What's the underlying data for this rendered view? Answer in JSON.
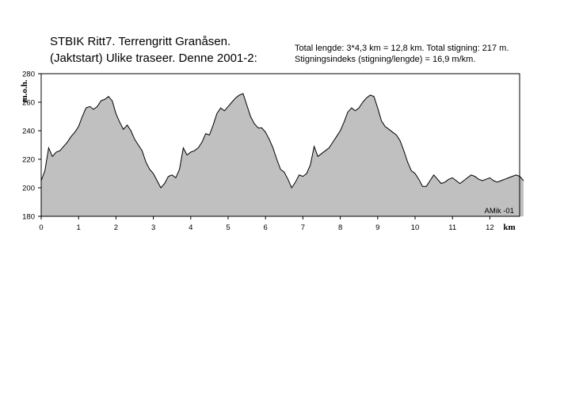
{
  "header": {
    "title_line1": "STBIK Ritt7. Terrengritt Granåsen.",
    "title_line2": "(Jaktstart) Ulike traseer. Denne 2001-2:",
    "info_line1": "Total lengde: 3*4,3 km = 12,8 km. Total stigning:  217 m.",
    "info_line2": "Stigningsindeks (stigning/lengde) = 16,9 m/km."
  },
  "chart_data": {
    "type": "area",
    "title": "STBIK Ritt7. Terrengritt Granåsen. (Jaktstart) Ulike traseer. Denne 2001-2:",
    "xlabel": "km",
    "ylabel": "m.o.h.",
    "xlim": [
      0,
      12.9
    ],
    "ylim": [
      180,
      280
    ],
    "xticks": [
      0,
      1,
      2,
      3,
      4,
      5,
      6,
      7,
      8,
      9,
      10,
      11,
      12
    ],
    "yticks": [
      180,
      200,
      220,
      240,
      260,
      280
    ],
    "annotation": "AMik -01",
    "grid": false,
    "fill_color": "#c0c0c0",
    "line_color": "#000000",
    "x": [
      0,
      0.1,
      0.2,
      0.3,
      0.4,
      0.5,
      0.6,
      0.7,
      0.8,
      0.9,
      1.0,
      1.1,
      1.2,
      1.3,
      1.4,
      1.5,
      1.6,
      1.7,
      1.8,
      1.9,
      2.0,
      2.1,
      2.2,
      2.3,
      2.4,
      2.5,
      2.6,
      2.7,
      2.8,
      2.9,
      3.0,
      3.1,
      3.2,
      3.3,
      3.4,
      3.5,
      3.6,
      3.7,
      3.8,
      3.9,
      4.0,
      4.1,
      4.2,
      4.3,
      4.4,
      4.5,
      4.6,
      4.7,
      4.8,
      4.9,
      5.0,
      5.1,
      5.2,
      5.3,
      5.4,
      5.5,
      5.6,
      5.7,
      5.8,
      5.9,
      6.0,
      6.1,
      6.2,
      6.3,
      6.4,
      6.5,
      6.6,
      6.7,
      6.8,
      6.9,
      7.0,
      7.1,
      7.2,
      7.3,
      7.4,
      7.5,
      7.6,
      7.7,
      7.8,
      7.9,
      8.0,
      8.1,
      8.2,
      8.3,
      8.4,
      8.5,
      8.6,
      8.7,
      8.8,
      8.9,
      9.0,
      9.1,
      9.2,
      9.3,
      9.4,
      9.5,
      9.6,
      9.7,
      9.8,
      9.9,
      10.0,
      10.1,
      10.2,
      10.3,
      10.4,
      10.5,
      10.6,
      10.7,
      10.8,
      10.9,
      11.0,
      11.1,
      11.2,
      11.3,
      11.4,
      11.5,
      11.6,
      11.7,
      11.8,
      11.9,
      12.0,
      12.1,
      12.2,
      12.3,
      12.4,
      12.5,
      12.6,
      12.7,
      12.8,
      12.9
    ],
    "y": [
      205,
      212,
      228,
      222,
      225,
      226,
      229,
      232,
      236,
      239,
      243,
      250,
      256,
      257,
      255,
      257,
      261,
      262,
      264,
      261,
      252,
      246,
      241,
      244,
      240,
      234,
      230,
      226,
      218,
      213,
      210,
      205,
      200,
      203,
      208,
      209,
      207,
      213,
      228,
      223,
      225,
      226,
      228,
      232,
      238,
      237,
      244,
      252,
      256,
      254,
      257,
      260,
      263,
      265,
      266,
      258,
      250,
      245,
      242,
      242,
      239,
      234,
      228,
      220,
      213,
      211,
      206,
      200,
      204,
      209,
      208,
      210,
      216,
      229,
      222,
      224,
      226,
      228,
      232,
      236,
      240,
      246,
      253,
      256,
      254,
      256,
      260,
      263,
      265,
      264,
      256,
      247,
      243,
      241,
      239,
      237,
      233,
      226,
      218,
      212,
      210,
      206,
      201,
      201,
      205,
      209,
      206,
      203,
      204,
      206,
      207,
      205,
      203,
      205,
      207,
      209,
      208,
      206,
      205,
      206,
      207,
      205,
      204,
      205,
      206,
      207,
      208,
      209,
      208,
      205
    ]
  }
}
